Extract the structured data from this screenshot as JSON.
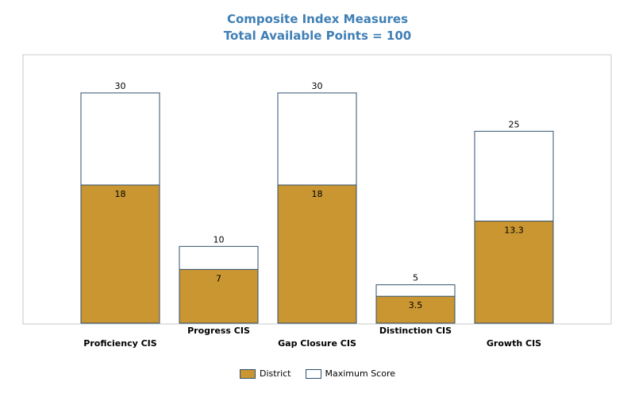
{
  "chart_data": {
    "type": "bar",
    "title": "Composite Index Measures",
    "subtitle": "Total Available Points = 100",
    "categories": [
      "Proficiency CIS",
      "Progress CIS",
      "Gap Closure CIS",
      "Distinction CIS",
      "Growth CIS"
    ],
    "series": [
      {
        "name": "District",
        "values": [
          18,
          7,
          18,
          3.5,
          13.3
        ],
        "color": "#c99632"
      },
      {
        "name": "Maximum Score",
        "values": [
          30,
          10,
          30,
          5,
          25
        ],
        "color": "#ffffff"
      }
    ],
    "ylim": [
      0,
      30
    ],
    "grid": false,
    "legend_position": "bottom",
    "stroke_color": "#2f4f6f"
  }
}
